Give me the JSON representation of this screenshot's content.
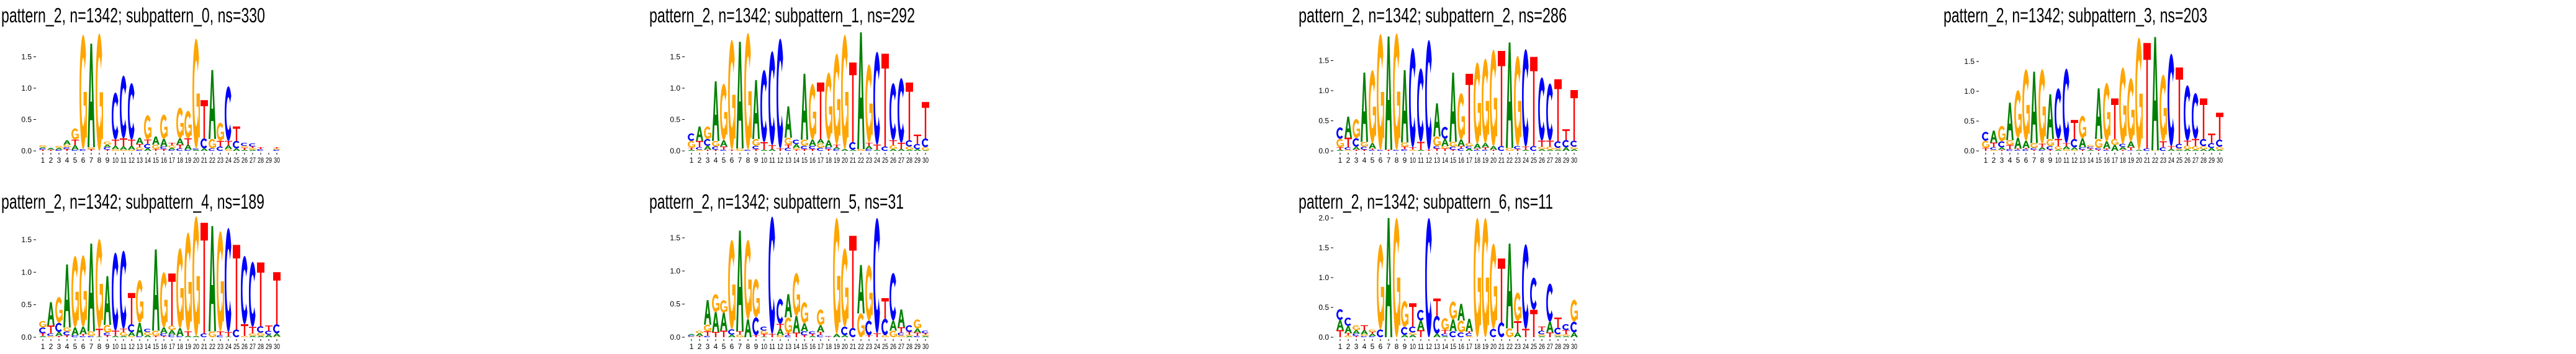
{
  "colors": {
    "A": "#008000",
    "C": "#0000ff",
    "G": "#ffa500",
    "T": "#ff0000"
  },
  "chart_data": [
    {
      "type": "sequence-logo",
      "title": "pattern_2, n=1342; subpattern_0, ns=330",
      "ylim": [
        0,
        1.9
      ],
      "yticks": [
        "0.0",
        "0.5",
        "1.0",
        "1.5"
      ],
      "positions": [
        "1",
        "2",
        "3",
        "4",
        "5",
        "6",
        "7",
        "8",
        "9",
        "10",
        "11",
        "12",
        "13",
        "14",
        "15",
        "16",
        "17",
        "18",
        "19",
        "20",
        "21",
        "22",
        "23",
        "24",
        "25",
        "26",
        "27",
        "28",
        "29",
        "30"
      ],
      "stacks": [
        "T.02 C.02 A.02 G.03",
        "T.02 A.03",
        "C.02 A.03 G.03",
        "T.03 C.03 G.04 A.07",
        "C.02 A.07 T.09 G.18",
        "C.03 G1.82",
        "T.03 G.03 A1.65",
        "G1.87",
        "T.02 C.04 A.04 G.05",
        "G.03 A.05 T.1 C.75",
        "G.02 A.05 T.13 C1.0",
        "G.02 A.06 T.1 C.9",
        "C.02 G.04 T.05 A.1",
        "A.04 C.07 T.07 G.39",
        "T.03 G.07 A.13",
        "T.03 C.04 A.12 G.39",
        "C.02 A.03 G.04 T.04",
        "C.04 T.06 A.1 G.49",
        "C.02 A.08 T.1 G.44",
        "A.02 C.02 G1.75",
        "A.04 C.16 T.61",
        "C.04 G.15 A1.1",
        "C.07 T.09 G.29",
        "G.03 A.06 T.07 C.87",
        "A.04 C.12 T.23",
        "A.02 T.03 G.03 C.05",
        "A.02 G.03 T.02 C.05",
        "C.03 T.03",
        "",
        "C.02 G.02 T.02"
      ]
    },
    {
      "type": "sequence-logo",
      "title": "pattern_2, n=1342; subpattern_1, ns=292",
      "ylim": [
        0,
        1.9
      ],
      "yticks": [
        "0.0",
        "0.5",
        "1.0",
        "1.5"
      ],
      "positions": [
        "1",
        "2",
        "3",
        "4",
        "5",
        "6",
        "7",
        "8",
        "9",
        "10",
        "11",
        "12",
        "13",
        "14",
        "15",
        "16",
        "17",
        "18",
        "19",
        "20",
        "21",
        "22",
        "23",
        "24",
        "25",
        "26",
        "27",
        "28",
        "29",
        "30"
      ],
      "stacks": [
        "A.02 T.03 G.11 C.12",
        "G.02 C.04 T.1 A.23",
        "T.02 A.06 C.11 G.2",
        "T.02 C.05 G.09 A.95",
        "C.02 T.05 A.1 G.9",
        "T.02 G1.75",
        "G.04 A1.7",
        "C.02 G1.86",
        "T.03 C.05 G.11 A.94",
        "A.02 T.12 C1.15",
        "A.03 T.06 C1.5",
        "T.04 C1.75",
        "C.05 T.05 G.11 A.5",
        "T.02 G.03 A.06 C.07",
        "T.03 C.05 G.1 A1.05",
        "T.03 C.05 A.1 G.89",
        "C.05 G.07 A.07 T.9",
        "T.03 C.03 A.11 G1.08",
        "C.03 A.03 T.04 G1.45",
        "A.03 G1.82",
        "A.02 C.12 T1.27",
        "G.03 A1.86",
        "C.03 A.05 T.05 G1.25",
        "A.02 T.08 C1.48",
        "C.07 T1.48",
        "A.03 G.06 T.08 C.91",
        "A.03 T.1 C1.03",
        "A.02 G.05 C.1 T.92",
        "A.03 C.08 T.15",
        "A.01 G.05 C.14 T.58"
      ]
    },
    {
      "type": "sequence-logo",
      "title": "pattern_2, n=1342; subpattern_2, ns=286",
      "ylim": [
        0,
        1.95
      ],
      "yticks": [
        "0.0",
        "0.5",
        "1.0",
        "1.5"
      ],
      "positions": [
        "1",
        "2",
        "3",
        "4",
        "5",
        "6",
        "7",
        "8",
        "9",
        "10",
        "11",
        "12",
        "13",
        "14",
        "15",
        "16",
        "17",
        "18",
        "19",
        "20",
        "21",
        "22",
        "23",
        "24",
        "25",
        "26",
        "27",
        "28",
        "29",
        "30"
      ],
      "stacks": [
        "A.02 T.04 G.14 C.19",
        "G.02 C.04 T.16 A.35",
        "T.02 A.05 C.14 G.32",
        "T.02 C.05 G.08 A1.15",
        "C.02 T.02 A.09 G1.21",
        "C.02 G1.92",
        "T.02 A1.88",
        "C.02 G1.93",
        "C.03 T.04 G.07 A1.2",
        "G.02 T.04 C1.65",
        "A.02 T.13 C1.22",
        "T.02 C1.82",
        "T.04 C.04 G.16 A.55",
        "T.04 G.04 A.12 C.2",
        "T.02 C.05 G.08 A1.15",
        "C.04 T.04 A.11 G.77",
        "A.04 C.04 G.05 T1.15",
        "C.02 T.02 A.08 G1.35",
        "C.02 T.04 A.07 G1.4",
        "T.02 A.06 G1.6",
        "C.08 T1.58",
        "G.05 A1.75",
        "T.03 C.05 G1.5",
        "A.02 T.05 C1.62",
        "C.08 T1.48",
        "A.03 G.04 T.1 C1.05",
        "A.02 G.05 T.1 C.95",
        "A.02 G.03 C.11 T1.03",
        "A.06 C.12 T.18",
        "A.03 G.04 C.1 T.84"
      ]
    },
    {
      "type": "sequence-logo",
      "title": "pattern_2, n=1342; subpattern_3, ns=203",
      "ylim": [
        0,
        1.95
      ],
      "yticks": [
        "0.0",
        "0.5",
        "1.0",
        "1.5"
      ],
      "positions": [
        "1",
        "2",
        "3",
        "4",
        "5",
        "6",
        "7",
        "8",
        "9",
        "10",
        "11",
        "12",
        "13",
        "14",
        "15",
        "16",
        "17",
        "18",
        "19",
        "20",
        "21",
        "22",
        "23",
        "24",
        "25",
        "26",
        "27",
        "28",
        "29",
        "30"
      ],
      "stacks": [
        "T.05 G.12 C.15",
        "G.02 C.04 T.08 A.2",
        "T.02 A.04 C.1 G.26",
        "C.03 T.07 G.08 A.63",
        "C.02 T.02 A.18 G.8",
        "C.03 T.02 A.12 G1.2",
        "T.02 C.03 G.08 A1.2",
        "C.02 A.04 T.06 G1.25",
        "T.02 C.06 G.12 A.75",
        "A.02 G.06 T.12 C.85",
        "G.03 A.05 T.05 C1.25",
        "G.02 A.04 C.14 T.32",
        "T.02 C.04 A.15 G.38",
        "A.02 T.02 C.03 G.03",
        "T.02 C.03 G.15 A.85",
        "C.02 T.02 A.12 G.98",
        "A.1 G.1 T.68",
        "T.02 A.05 C.05 G1.28",
        "C.01 T.05 A.1 G1.06",
        "A.02 G1.88",
        "C.04 T1.77",
        "G.01 A1.9",
        "C.06 T.1 G1.12",
        "A.03 T.05 C1.55",
        "A.02 G.02 C.08 T1.28",
        "A.03 G.06 T.08 C.93",
        "A.02 G.06 T.12 C.77",
        "A.03 G.05 C.12 T.68",
        "A.05 C.08 T.16",
        "A.02 G.05 C.12 T.45"
      ]
    },
    {
      "type": "sequence-logo",
      "title": "pattern_2, n=1342; subpattern_4, ns=189",
      "ylim": [
        0,
        1.9
      ],
      "yticks": [
        "0.0",
        "0.5",
        "1.0",
        "1.5"
      ],
      "positions": [
        "1",
        "2",
        "3",
        "4",
        "5",
        "6",
        "7",
        "8",
        "9",
        "10",
        "11",
        "12",
        "13",
        "14",
        "15",
        "16",
        "17",
        "18",
        "19",
        "20",
        "21",
        "22",
        "23",
        "24",
        "25",
        "26",
        "27",
        "28",
        "29",
        "30"
      ],
      "stacks": [
        "A.02 T.04 C.09 G.1",
        "G.02 C.04 T.12 A.36",
        "T.02 A.06 C.14 G.4",
        "T.03 C.06 G.06 A.97",
        "C.03 A.12 G1.1",
        "C.02 T.03 A.11 G1.1",
        "C.02 G.07 A1.35",
        "A.01 T.12 G1.38",
        "T.03 C.04 G.12 A.75",
        "A.02 T.08 C1.2",
        "A.02 G.06 T.05 C1.2",
        "G.02 A.06 C.12 T.48",
        "C.02 A.2 G.66",
        "A.03 G.05 C.05",
        "T.02 G.08 A1.25",
        "T.02 C.04 A.09 G.85",
        "C.04 A.07 G.07 T.8",
        "C.02 A.12 G1.23",
        "A.02 T.07 G1.52",
        "A.02 G1.84",
        "C.06 T1.7",
        "G.09 A1.62",
        "C.03 T.06 G1.54",
        "A.01 T.07 C1.6",
        "C.12 T1.3",
        "G.02 T.18 C1.05",
        "A.02 G.04 T.1 C1.0",
        "A.02 G.05 C.1 T.98",
        "A.04 C.06 T.08",
        "G.01 A.05 C.14 T.8"
      ]
    },
    {
      "type": "sequence-logo",
      "title": "pattern_2, n=1342; subpattern_5, ns=31",
      "ylim": [
        0,
        1.8
      ],
      "yticks": [
        "0.0",
        "0.5",
        "1.0",
        "1.5"
      ],
      "positions": [
        "1",
        "2",
        "3",
        "4",
        "5",
        "6",
        "7",
        "8",
        "9",
        "10",
        "11",
        "12",
        "13",
        "14",
        "15",
        "16",
        "17",
        "18",
        "19",
        "20",
        "21",
        "22",
        "23",
        "24",
        "25",
        "26",
        "27",
        "28",
        "29",
        "30"
      ],
      "stacks": [
        "G.01 C.02 A.02",
        "T.02 A.04 G.04",
        "C.02 T.07 G.1 A.37",
        "T.08 A.3 G.27",
        "T.1 A.27 G.19",
        "A.04 C.08 G1.35",
        "G.04 T.05 A1.52",
        "A.27 G1.2",
        "T.03 C.27 G.58",
        "A.01 T.04 G.05 C.06",
        "T.05 C1.77",
        "G.03 A.1 T.07 C.38",
        "C.03 T.03 G.24 A.35",
        "T.07 A.25 G.65",
        "T.03 C.06 A.12 G.32",
        "A.02 T.03 C.04",
        "C.04 T.04 A.1 G.24",
        "T.01 C.01",
        "A.05 G1.75",
        "A.03 C.13 G1.18",
        "C.14 T1.39",
        "G.36 A.73",
        "T.03 C.22 G.84",
        "T.06 C1.74",
        "G.03 C.25 T.31",
        "G.1 A.15 C.72",
        "G.03 C.04 T.08 A.27",
        "A.02 G.02 T.04 C.1",
        "C.02 T.05 A.06 G.14",
        "A.02 G.02 T.02 C.04"
      ]
    },
    {
      "type": "sequence-logo",
      "title": "pattern_2, n=1342; subpattern_6, ns=11",
      "ylim": [
        0,
        2.0
      ],
      "yticks": [
        "0.0",
        "0.5",
        "1.0",
        "1.5",
        "2.0"
      ],
      "positions": [
        "1",
        "2",
        "3",
        "4",
        "5",
        "6",
        "7",
        "8",
        "9",
        "10",
        "11",
        "12",
        "13",
        "14",
        "15",
        "16",
        "17",
        "18",
        "19",
        "20",
        "21",
        "22",
        "23",
        "24",
        "25",
        "26",
        "27",
        "28",
        "29",
        "30"
      ],
      "stacks": [
        "T.12 A.17 C.18",
        "G.03 T.04 A.12 C.14",
        "T.02 C.04 A.06 G.08",
        "C.02 G.03 A.07 T.08",
        "C.02 A.04 T.03 G.04",
        "C.13 G1.43",
        "A2.0",
        "G2.0",
        "A.04 C.13 G.44",
        "A.04 G.04 C.1 T.39",
        "T.12 A.16 C.18",
        "C2.0",
        "A.06 C.3 T.29",
        "A.02 C.04 T.06 G.2",
        "C.1 A.2 G.3",
        "C.08 G.2 A.28",
        "G.02 C.05 T.03 A.21",
        "G2.0",
        "G2.0",
        "C.14 G1.43",
        "C.25 T1.07",
        "G.15 A1.42",
        "A.08 T.19 G.48",
        "T.14 C1.42",
        "T.46 C.54",
        "A.02 G.03 C.06 T.07",
        "T.08 A.18 C.64",
        "A.02 G.03 C.11 T.17",
        "A.02 G.03 T.07 C.1",
        "A.08 C.18 G.37"
      ]
    }
  ]
}
